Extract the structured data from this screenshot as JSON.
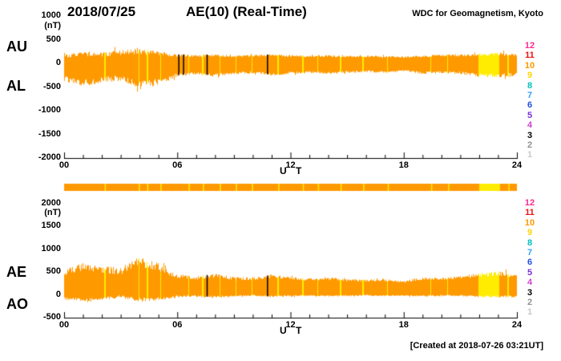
{
  "header": {
    "date": "2018/07/25",
    "title": "AE(10) (Real-Time)",
    "source": "WDC for Geomagnetism, Kyoto"
  },
  "footer": {
    "created": "[Created at 2018-07-26 03:21UT]"
  },
  "station_scale": {
    "entries": [
      {
        "n": "12",
        "color": "#ff2a90"
      },
      {
        "n": "11",
        "color": "#f01010"
      },
      {
        "n": "10",
        "color": "#ff9900"
      },
      {
        "n": "9",
        "color": "#ffd400"
      },
      {
        "n": "8",
        "color": "#00bfbf"
      },
      {
        "n": "7",
        "color": "#2f9fff"
      },
      {
        "n": "6",
        "color": "#2050e0"
      },
      {
        "n": "5",
        "color": "#7a30d0"
      },
      {
        "n": "4",
        "color": "#cf40cf"
      },
      {
        "n": "3",
        "color": "#000000"
      },
      {
        "n": "2",
        "color": "#909090"
      },
      {
        "n": "1",
        "color": "#c9c9c9"
      }
    ]
  },
  "chart_data": [
    {
      "type": "area",
      "title": "AE(10) (Real-Time)",
      "panel": "AU / AL indices, 1-min values",
      "ylabel": "(nT)",
      "xlabel": "U T",
      "ylim": [
        -2000,
        1000
      ],
      "yticks": [
        1000,
        500,
        0,
        -500,
        -1000,
        -1500,
        -2000
      ],
      "xlim": [
        0,
        24
      ],
      "xticks": [
        0,
        6,
        12,
        18,
        24
      ],
      "xtick_labels": [
        "00",
        "06",
        "12",
        "18",
        "24"
      ],
      "x_hours": [
        0,
        1,
        2,
        3,
        4,
        5,
        6,
        7,
        8,
        9,
        10,
        11,
        12,
        13,
        14,
        15,
        16,
        17,
        18,
        19,
        20,
        21,
        22,
        23,
        24
      ],
      "series": [
        {
          "name": "AU",
          "values": [
            160,
            200,
            185,
            235,
            255,
            205,
            165,
            160,
            170,
            150,
            160,
            170,
            155,
            150,
            155,
            140,
            150,
            140,
            130,
            150,
            165,
            170,
            180,
            200,
            170
          ]
        },
        {
          "name": "AL",
          "values": [
            -320,
            -410,
            -350,
            -300,
            -470,
            -390,
            -235,
            -210,
            -250,
            -200,
            -190,
            -230,
            -200,
            -185,
            -200,
            -180,
            -165,
            -180,
            -150,
            -200,
            -185,
            -200,
            -250,
            -265,
            -235
          ]
        }
      ],
      "noise_amp": [
        [
          45,
          55,
          50,
          60,
          60,
          50,
          30,
          25,
          25,
          20,
          20,
          25,
          20,
          20,
          20,
          18,
          18,
          18,
          15,
          20,
          22,
          25,
          30,
          35,
          30
        ],
        [
          65,
          75,
          65,
          70,
          90,
          80,
          40,
          32,
          36,
          30,
          26,
          30,
          26,
          23,
          25,
          22,
          20,
          22,
          18,
          25,
          26,
          28,
          40,
          45,
          40
        ]
      ],
      "fill_color": "#ff9900",
      "reduced_station_color": "#ffec00",
      "yellow_interval_hours": [
        [
          22.0,
          23.1
        ]
      ],
      "yellow_line_hours": [
        2.15,
        3.95,
        4.4,
        5.1,
        6.6,
        7.35,
        8.25,
        9.1,
        9.95,
        11.35,
        12.65,
        13.45,
        14.65,
        15.85,
        17.15,
        19.45,
        20.35,
        23.55
      ],
      "black_mark_hours": [
        6.05,
        6.3,
        7.55,
        10.75
      ]
    },
    {
      "type": "area",
      "panel": "AE / AO indices, 1-min values",
      "ylabel": "(nT)",
      "xlabel": "U T",
      "ylim": [
        -500,
        2000
      ],
      "yticks": [
        2000,
        1500,
        1000,
        500,
        0,
        -500
      ],
      "xlim": [
        0,
        24
      ],
      "xticks": [
        0,
        6,
        12,
        18,
        24
      ],
      "xtick_labels": [
        "00",
        "06",
        "12",
        "18",
        "24"
      ],
      "x_hours": [
        0,
        1,
        2,
        3,
        4,
        5,
        6,
        7,
        8,
        9,
        10,
        11,
        12,
        13,
        14,
        15,
        16,
        17,
        18,
        19,
        20,
        21,
        22,
        23,
        24
      ],
      "series": [
        {
          "name": "AE",
          "values": [
            490,
            620,
            540,
            540,
            730,
            600,
            405,
            375,
            425,
            355,
            355,
            405,
            360,
            340,
            360,
            325,
            320,
            325,
            285,
            355,
            355,
            375,
            435,
            470,
            410
          ]
        },
        {
          "name": "AO",
          "values": [
            -80,
            -105,
            -82,
            -32,
            -108,
            -92,
            -35,
            -25,
            -40,
            -25,
            -15,
            -30,
            -22,
            -17,
            -22,
            -20,
            -8,
            -20,
            -10,
            -25,
            -10,
            -15,
            -35,
            -33,
            -33
          ]
        }
      ],
      "noise_amp": [
        [
          75,
          85,
          75,
          90,
          110,
          95,
          50,
          42,
          46,
          38,
          34,
          40,
          34,
          30,
          32,
          28,
          26,
          28,
          22,
          32,
          32,
          36,
          46,
          52,
          46
        ],
        [
          32,
          36,
          30,
          36,
          46,
          40,
          25,
          20,
          22,
          18,
          16,
          18,
          16,
          14,
          15,
          14,
          12,
          14,
          11,
          15,
          15,
          17,
          22,
          25,
          22
        ]
      ],
      "fill_color": "#ff9900",
      "reduced_station_color": "#ffec00",
      "yellow_interval_hours": [
        [
          22.0,
          23.1
        ]
      ],
      "yellow_line_hours": [
        2.15,
        3.95,
        4.4,
        5.1,
        6.6,
        7.35,
        8.25,
        9.1,
        9.95,
        11.35,
        12.65,
        13.45,
        14.65,
        15.85,
        17.15,
        19.45,
        20.35,
        23.55
      ],
      "black_mark_hours": [
        7.55,
        10.75
      ]
    }
  ],
  "station_bar": {
    "color": "#ff9900",
    "yellow_intervals": [
      [
        22.0,
        23.1
      ]
    ],
    "yellow_lines": [
      2.15,
      3.95,
      4.4,
      5.1,
      6.6,
      7.35,
      8.25,
      9.1,
      9.95,
      11.35,
      12.65,
      13.45,
      14.65,
      15.85,
      17.15,
      19.45,
      20.35,
      23.55
    ]
  }
}
